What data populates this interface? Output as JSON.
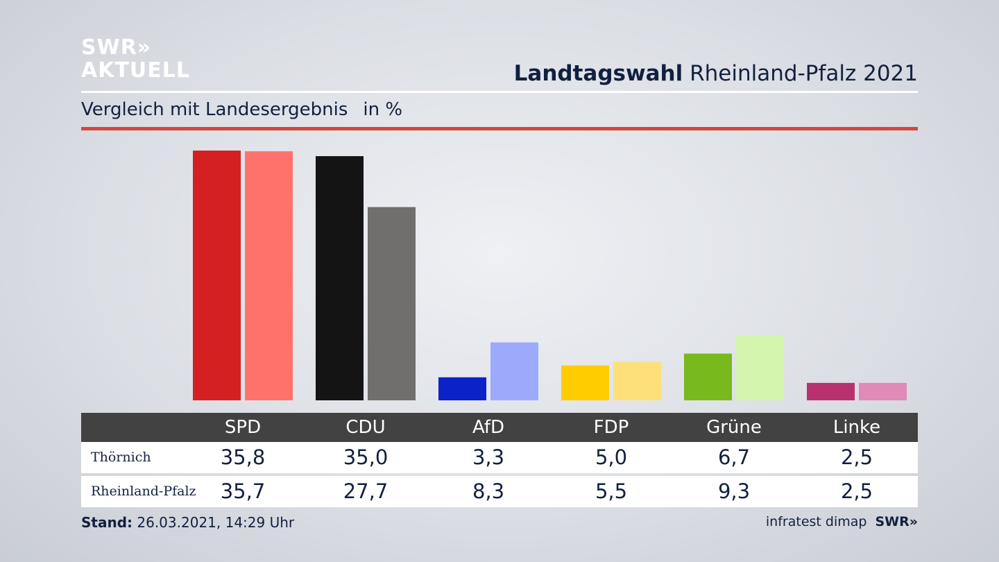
{
  "brand": {
    "line1": "SWR»",
    "line2": "AKTUELL"
  },
  "title": {
    "bold": "Landtagswahl",
    "rest": "Rheinland-Pfalz 2021"
  },
  "subtitle": {
    "text": "Vergleich mit Landesergebnis",
    "unit": "in %"
  },
  "colors": {
    "accent_line": "#d4473a"
  },
  "chart_data": {
    "type": "bar",
    "categories": [
      "SPD",
      "CDU",
      "AfD",
      "FDP",
      "Grüne",
      "Linke"
    ],
    "series": [
      {
        "name": "Thörnich",
        "values": [
          35.8,
          35.0,
          3.3,
          5.0,
          6.7,
          2.5
        ],
        "colors": [
          "#d42020",
          "#141414",
          "#0a22c8",
          "#ffcc00",
          "#78b91e",
          "#b8306e"
        ]
      },
      {
        "name": "Rheinland-Pfalz",
        "values": [
          35.7,
          27.7,
          8.3,
          5.5,
          9.3,
          2.5
        ],
        "colors": [
          "#ff726c",
          "#706f6e",
          "#9caafc",
          "#fde07a",
          "#d3f5ad",
          "#e08ab8"
        ]
      }
    ],
    "ylim": [
      0,
      36
    ],
    "grid": false
  },
  "table": {
    "headers": [
      "SPD",
      "CDU",
      "AfD",
      "FDP",
      "Grüne",
      "Linke"
    ],
    "rows": [
      {
        "label": "Thörnich",
        "values": [
          "35,8",
          "35,0",
          "3,3",
          "5,0",
          "6,7",
          "2,5"
        ]
      },
      {
        "label": "Rheinland-Pfalz",
        "values": [
          "35,7",
          "27,7",
          "8,3",
          "5,5",
          "9,3",
          "2,5"
        ]
      }
    ]
  },
  "footer": {
    "stand_label": "Stand:",
    "stand_value": "26.03.2021, 14:29 Uhr",
    "source": "infratest dimap",
    "brand": "SWR»"
  }
}
